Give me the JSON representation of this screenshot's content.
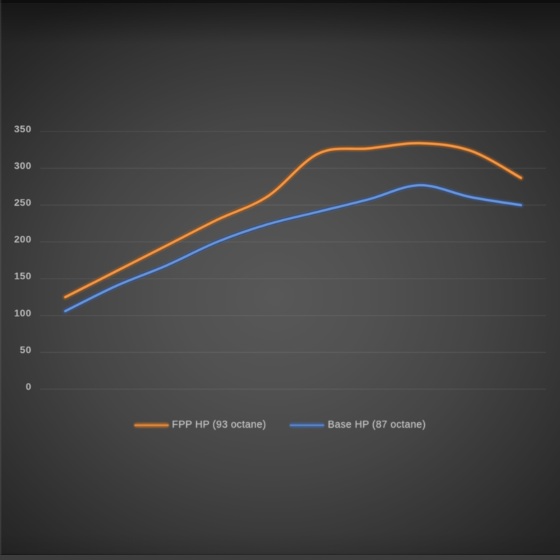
{
  "chart_data": {
    "type": "line",
    "line_style": "smoothed",
    "title": "",
    "xlabel": "",
    "ylabel": "",
    "x": [
      1,
      2,
      3,
      4,
      5,
      6,
      7,
      8,
      9,
      10
    ],
    "x_tick_labels_visible": false,
    "series": [
      {
        "name": "FPP HP (93 octane)",
        "color": "#e08434",
        "color_dark": "#8f4d15",
        "color_light": "#f0994d",
        "values": [
          125,
          160,
          195,
          230,
          262,
          320,
          327,
          334,
          324,
          287
        ]
      },
      {
        "name": "Base HP (87 octane)",
        "color": "#4a78c0",
        "color_dark": "#2c4c85",
        "color_light": "#6b95d6",
        "values": [
          106,
          140,
          168,
          200,
          224,
          241,
          258,
          277,
          261,
          250
        ]
      }
    ],
    "yticks": [
      0,
      50,
      100,
      150,
      200,
      250,
      300,
      350
    ],
    "ylim": [
      0,
      375
    ],
    "grid": true,
    "legend_position": "bottom-center"
  },
  "colors": {
    "background_center": "#585858",
    "background_edge": "#242424",
    "gridline": "#ffffff",
    "tick_label": "#c6c6c6",
    "legend_label": "#c8c8c8"
  }
}
